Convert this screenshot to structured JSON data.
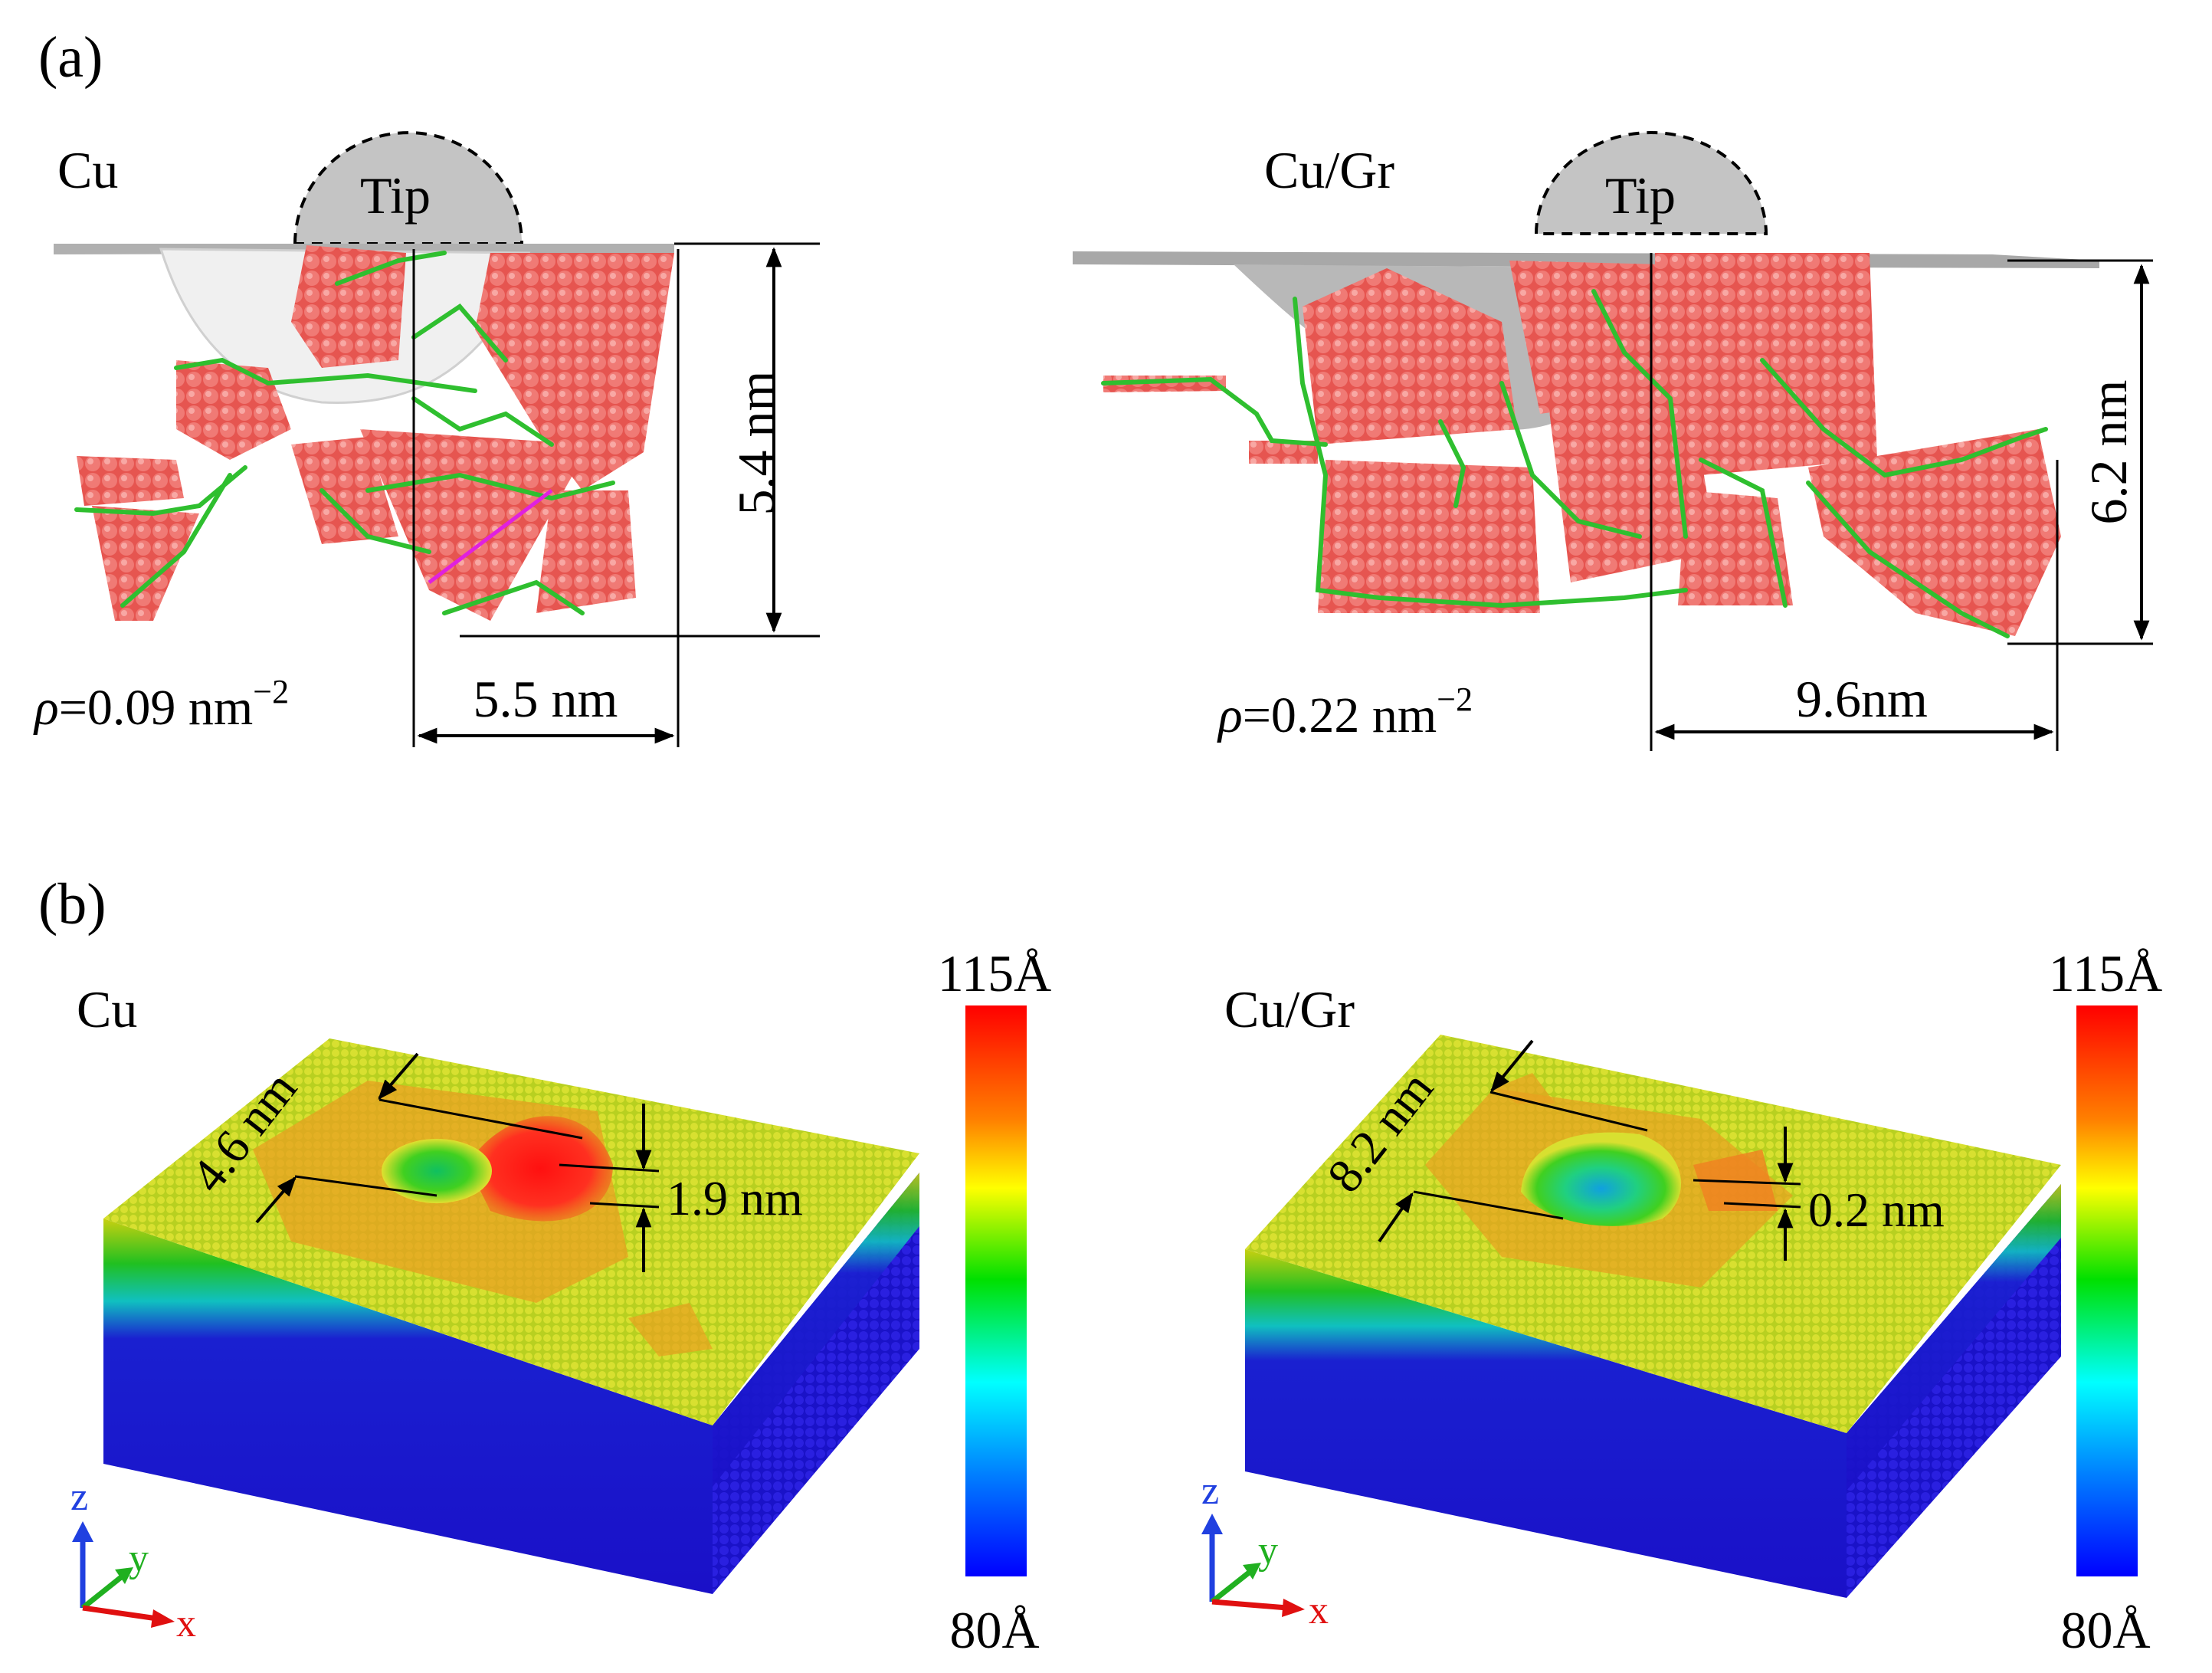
{
  "panel_a": {
    "label": "(a)",
    "left": {
      "material": "Cu",
      "tip": "Tip",
      "depth": "5.4 nm",
      "width": "5.5 nm",
      "rho_prefix": "ρ",
      "rho_value": "=0.09 nm",
      "rho_exp": "−2"
    },
    "right": {
      "material": "Cu/Gr",
      "tip": "Tip",
      "depth": "6.2 nm",
      "width": "9.6nm",
      "rho_prefix": "ρ",
      "rho_value": "=0.22 nm",
      "rho_exp": "−2"
    }
  },
  "panel_b": {
    "label": "(b)",
    "left": {
      "material": "Cu",
      "diameter": "4.6 nm",
      "pileup": "1.9 nm",
      "cbar_max": "115Å",
      "cbar_min": "80Å"
    },
    "right": {
      "material": "Cu/Gr",
      "diameter": "8.2 nm",
      "pileup": "0.2 nm",
      "cbar_max": "115Å",
      "cbar_min": "80Å"
    },
    "axes": {
      "z": "z",
      "y": "y",
      "x": "x"
    }
  },
  "colors": {
    "atoms": "#e85a55",
    "dislocation": "#2fbf2f",
    "tip": "#c4c4c4",
    "surface": "#b8b8b8"
  }
}
